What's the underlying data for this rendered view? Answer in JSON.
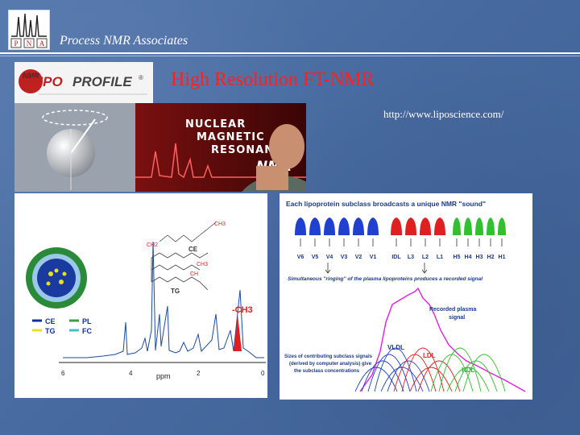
{
  "header": {
    "company": "Process NMR Associates",
    "logo_letters": [
      "P",
      "N",
      "A"
    ]
  },
  "slide": {
    "title": "High Resolution FT-NMR",
    "url": "http://www.liposcience.com/"
  },
  "lipo_logo": {
    "prefix": "NMR",
    "brand_a": "LIPO",
    "brand_b": "PROFILE",
    "mark": "®"
  },
  "banner": {
    "line1": "Nuclear",
    "line2": "Magnetic",
    "line3": "Resonance",
    "badge": "NMR"
  },
  "spectrum": {
    "legend": [
      {
        "label": "CE",
        "color": "#1030a0"
      },
      {
        "label": "PL",
        "color": "#3aa040"
      },
      {
        "label": "TG",
        "color": "#e8e020"
      },
      {
        "label": "FC",
        "color": "#40c0d0"
      }
    ],
    "labels": {
      "ce": "CE",
      "tg": "TG",
      "ch3": "-CH3",
      "ch2": "CH2",
      "ch": "CH",
      "ch3b": "CH3",
      "ch3c": "CH3"
    },
    "axis": {
      "ticks": [
        "6",
        "4",
        "2",
        "0"
      ],
      "unit": "ppm"
    }
  },
  "subclass": {
    "heading": "Each lipoprotein subclass broadcasts a unique NMR \"sound\"",
    "bell_labels": [
      "V6",
      "V5",
      "V4",
      "V3",
      "V2",
      "V1",
      "IDL",
      "L3",
      "L2",
      "L1",
      "H5",
      "H4",
      "H3",
      "H2",
      "H1"
    ],
    "ringing": "Simultaneous \"ringing\" of the plasma lipoproteins produces a recorded signal",
    "recorded1": "Recorded plasma",
    "recorded2": "signal",
    "vldl": "VLDL",
    "ldl": "LDL",
    "hdl": "HDL",
    "sizes1": "Sizes of contributing subclass signals",
    "sizes2": "(derived by computer analysis) give",
    "sizes3": "the subclass concentrations",
    "colors": {
      "blue": "#2040d0",
      "red": "#e02020",
      "green": "#30c030",
      "magenta": "#e020e0"
    }
  }
}
